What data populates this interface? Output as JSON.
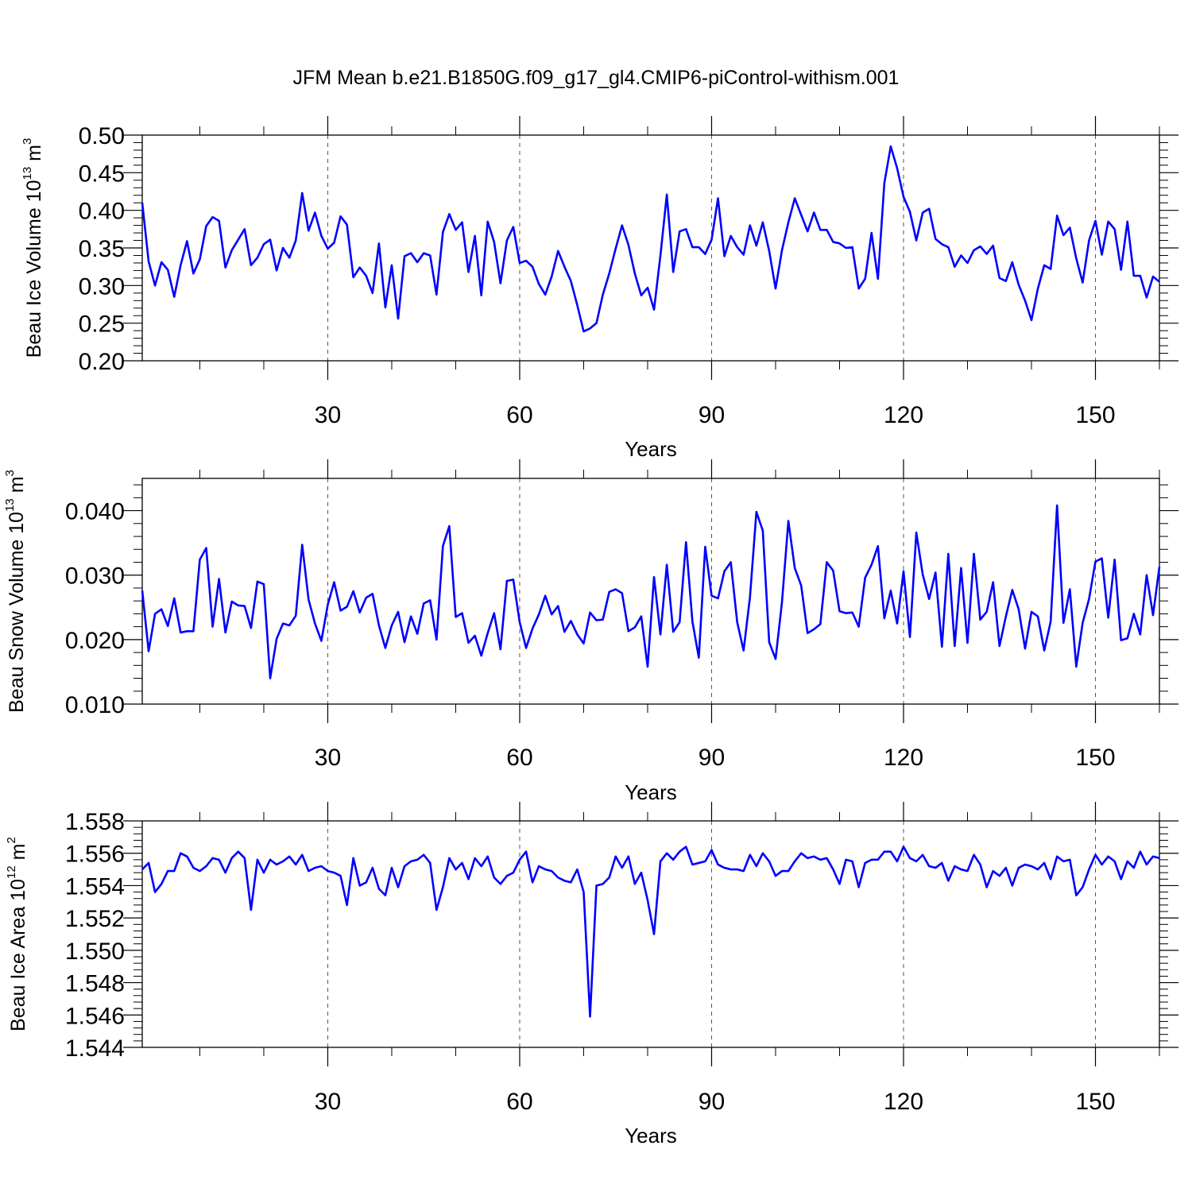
{
  "chart_data": [
    {
      "type": "line",
      "title": "JFM Mean b.e21.B1850G.f09_g17_gl4.CMIP6-piControl-withism.001",
      "ylabel": {
        "base": "Beau Ice Volume 10",
        "exp": "13",
        "unit": " m",
        "unit_exp": "3"
      },
      "xlabel": "Years",
      "xlim": [
        1,
        160
      ],
      "ylim": [
        0.2,
        0.5
      ],
      "xticks": [
        30,
        60,
        90,
        120,
        150
      ],
      "xtick_labels": [
        "30",
        "60",
        "90",
        "120",
        "150"
      ],
      "yticks": [
        0.2,
        0.25,
        0.3,
        0.35,
        0.4,
        0.45,
        0.5
      ],
      "ytick_labels": [
        "0.20",
        "0.25",
        "0.30",
        "0.35",
        "0.40",
        "0.45",
        "0.50"
      ],
      "grid": "vertical dashed at major x ticks",
      "color": "#0000ff",
      "series": [
        {
          "values": [
            0.41,
            0.332,
            0.3,
            0.331,
            0.321,
            0.285,
            0.327,
            0.359,
            0.316,
            0.335,
            0.379,
            0.391,
            0.386,
            0.324,
            0.347,
            0.361,
            0.375,
            0.327,
            0.337,
            0.355,
            0.361,
            0.32,
            0.35,
            0.337,
            0.36,
            0.423,
            0.373,
            0.397,
            0.366,
            0.349,
            0.357,
            0.392,
            0.381,
            0.311,
            0.324,
            0.313,
            0.29,
            0.356,
            0.271,
            0.327,
            0.256,
            0.339,
            0.343,
            0.331,
            0.343,
            0.34,
            0.288,
            0.371,
            0.395,
            0.374,
            0.384,
            0.318,
            0.366,
            0.287,
            0.385,
            0.358,
            0.303,
            0.36,
            0.378,
            0.33,
            0.333,
            0.325,
            0.302,
            0.288,
            0.312,
            0.346,
            0.325,
            0.306,
            0.274,
            0.239,
            0.243,
            0.25,
            0.288,
            0.316,
            0.349,
            0.38,
            0.354,
            0.316,
            0.287,
            0.297,
            0.268,
            0.34,
            0.421,
            0.318,
            0.372,
            0.375,
            0.351,
            0.351,
            0.342,
            0.361,
            0.416,
            0.339,
            0.366,
            0.351,
            0.341,
            0.38,
            0.353,
            0.384,
            0.346,
            0.296,
            0.347,
            0.384,
            0.416,
            0.394,
            0.372,
            0.397,
            0.374,
            0.374,
            0.358,
            0.356,
            0.35,
            0.351,
            0.296,
            0.309,
            0.37,
            0.309,
            0.436,
            0.485,
            0.456,
            0.418,
            0.398,
            0.36,
            0.397,
            0.402,
            0.362,
            0.355,
            0.351,
            0.325,
            0.34,
            0.33,
            0.347,
            0.352,
            0.342,
            0.353,
            0.31,
            0.306,
            0.331,
            0.301,
            0.28,
            0.254,
            0.296,
            0.327,
            0.322,
            0.393,
            0.367,
            0.377,
            0.336,
            0.304,
            0.36,
            0.386,
            0.341,
            0.385,
            0.375,
            0.321,
            0.385,
            0.313,
            0.313,
            0.284,
            0.312,
            0.305
          ]
        }
      ]
    },
    {
      "type": "line",
      "ylabel": {
        "base": "Beau Snow Volume 10",
        "exp": "13",
        "unit": " m",
        "unit_exp": "3"
      },
      "xlabel": "Years",
      "xlim": [
        1,
        160
      ],
      "ylim": [
        0.01,
        0.045
      ],
      "xticks": [
        30,
        60,
        90,
        120,
        150
      ],
      "xtick_labels": [
        "30",
        "60",
        "90",
        "120",
        "150"
      ],
      "yticks": [
        0.01,
        0.02,
        0.03,
        0.04
      ],
      "ytick_labels": [
        "0.010",
        "0.020",
        "0.030",
        "0.040"
      ],
      "grid": "vertical dashed at major x ticks",
      "color": "#0000ff",
      "series": [
        {
          "values": [
            0.0276,
            0.0182,
            0.024,
            0.0247,
            0.0221,
            0.0264,
            0.0211,
            0.0213,
            0.0213,
            0.0324,
            0.0342,
            0.022,
            0.0294,
            0.0211,
            0.0259,
            0.0253,
            0.0252,
            0.0218,
            0.029,
            0.0286,
            0.014,
            0.0201,
            0.0225,
            0.0222,
            0.0237,
            0.0347,
            0.0262,
            0.0225,
            0.0198,
            0.0254,
            0.0289,
            0.0245,
            0.0251,
            0.0275,
            0.0242,
            0.0265,
            0.0271,
            0.0222,
            0.0187,
            0.0222,
            0.0243,
            0.0196,
            0.0236,
            0.0209,
            0.0256,
            0.0261,
            0.02,
            0.0345,
            0.0376,
            0.0235,
            0.0241,
            0.0195,
            0.0206,
            0.0175,
            0.021,
            0.0241,
            0.0185,
            0.0291,
            0.0293,
            0.0227,
            0.0187,
            0.0217,
            0.0239,
            0.0268,
            0.0239,
            0.0252,
            0.0212,
            0.0229,
            0.0208,
            0.0194,
            0.0242,
            0.023,
            0.0231,
            0.0274,
            0.0278,
            0.0272,
            0.0213,
            0.0219,
            0.0236,
            0.0158,
            0.0297,
            0.0208,
            0.0316,
            0.0212,
            0.0227,
            0.0351,
            0.0228,
            0.0172,
            0.0344,
            0.0268,
            0.0264,
            0.0306,
            0.032,
            0.0227,
            0.0183,
            0.0266,
            0.0398,
            0.0369,
            0.0196,
            0.017,
            0.0258,
            0.0384,
            0.0311,
            0.0284,
            0.021,
            0.0216,
            0.0224,
            0.032,
            0.0307,
            0.0244,
            0.0241,
            0.0242,
            0.022,
            0.0296,
            0.0316,
            0.0345,
            0.0233,
            0.0276,
            0.0225,
            0.0306,
            0.0204,
            0.0366,
            0.0301,
            0.0263,
            0.0304,
            0.0189,
            0.0333,
            0.019,
            0.0311,
            0.0195,
            0.0333,
            0.0231,
            0.0243,
            0.0289,
            0.019,
            0.0236,
            0.0277,
            0.0247,
            0.0186,
            0.0243,
            0.0236,
            0.0183,
            0.0228,
            0.0408,
            0.0226,
            0.0278,
            0.0158,
            0.0226,
            0.0263,
            0.0321,
            0.0326,
            0.0234,
            0.0324,
            0.0199,
            0.0202,
            0.024,
            0.0208,
            0.03,
            0.0238,
            0.0313
          ]
        }
      ]
    },
    {
      "type": "line",
      "ylabel": {
        "base": "Beau Ice Area 10",
        "exp": "12",
        "unit": " m",
        "unit_exp": "2"
      },
      "xlabel": "Years",
      "xlim": [
        1,
        160
      ],
      "ylim": [
        1.544,
        1.558
      ],
      "xticks": [
        30,
        60,
        90,
        120,
        150
      ],
      "xtick_labels": [
        "30",
        "60",
        "90",
        "120",
        "150"
      ],
      "yticks": [
        1.544,
        1.546,
        1.548,
        1.55,
        1.552,
        1.554,
        1.556,
        1.558
      ],
      "ytick_labels": [
        "1.544",
        "1.546",
        "1.548",
        "1.550",
        "1.552",
        "1.554",
        "1.556",
        "1.558"
      ],
      "grid": "vertical dashed at major x ticks",
      "color": "#0000ff",
      "series": [
        {
          "values": [
            1.555,
            1.5554,
            1.5536,
            1.5541,
            1.5549,
            1.5549,
            1.556,
            1.5558,
            1.5551,
            1.5549,
            1.5552,
            1.5557,
            1.5556,
            1.5548,
            1.5557,
            1.5561,
            1.5557,
            1.5525,
            1.5556,
            1.5548,
            1.5556,
            1.5553,
            1.5555,
            1.5558,
            1.5553,
            1.5559,
            1.5549,
            1.5551,
            1.5552,
            1.5549,
            1.5548,
            1.5546,
            1.5528,
            1.5557,
            1.554,
            1.5542,
            1.5551,
            1.5538,
            1.5534,
            1.5551,
            1.5539,
            1.5552,
            1.5555,
            1.5556,
            1.5559,
            1.5554,
            1.5525,
            1.5539,
            1.5557,
            1.555,
            1.5554,
            1.5544,
            1.5557,
            1.5552,
            1.5558,
            1.5545,
            1.5541,
            1.5546,
            1.5548,
            1.5556,
            1.5561,
            1.5542,
            1.5552,
            1.555,
            1.5549,
            1.5545,
            1.5543,
            1.5542,
            1.555,
            1.5536,
            1.5459,
            1.554,
            1.5541,
            1.5545,
            1.5558,
            1.5551,
            1.5558,
            1.5541,
            1.5548,
            1.5531,
            1.551,
            1.5555,
            1.556,
            1.5556,
            1.5561,
            1.5564,
            1.5553,
            1.5554,
            1.5555,
            1.5562,
            1.5553,
            1.5551,
            1.555,
            1.555,
            1.5549,
            1.5559,
            1.5552,
            1.556,
            1.5555,
            1.5546,
            1.5549,
            1.5549,
            1.5555,
            1.556,
            1.5557,
            1.5558,
            1.5556,
            1.5557,
            1.555,
            1.5541,
            1.5556,
            1.5555,
            1.5539,
            1.5554,
            1.5556,
            1.5556,
            1.5561,
            1.5561,
            1.5555,
            1.5564,
            1.5557,
            1.5555,
            1.5559,
            1.5552,
            1.5551,
            1.5554,
            1.5543,
            1.5552,
            1.555,
            1.5549,
            1.5559,
            1.5553,
            1.5539,
            1.5549,
            1.5546,
            1.5551,
            1.554,
            1.5551,
            1.5553,
            1.5552,
            1.555,
            1.5554,
            1.5544,
            1.5558,
            1.5555,
            1.5556,
            1.5534,
            1.5539,
            1.555,
            1.5559,
            1.5553,
            1.5558,
            1.5555,
            1.5544,
            1.5555,
            1.5551,
            1.5561,
            1.5553,
            1.5558,
            1.5557
          ]
        }
      ]
    }
  ]
}
